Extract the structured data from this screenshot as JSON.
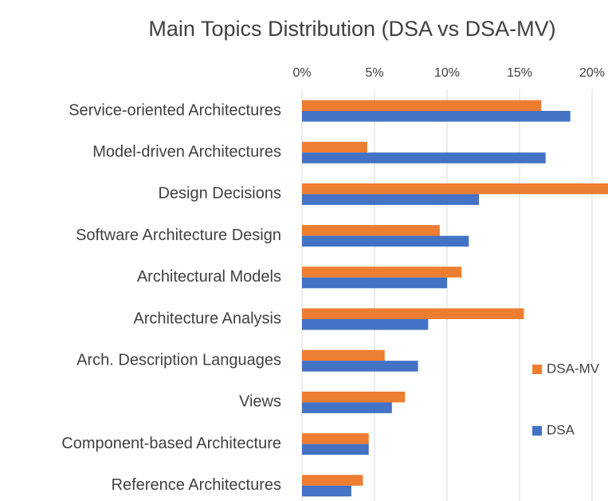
{
  "chart_data": {
    "type": "bar",
    "orientation": "horizontal",
    "title": "Main Topics Distribution (DSA vs DSA-MV)",
    "categories": [
      "Service-oriented Architectures",
      "Model-driven Architectures",
      "Design Decisions",
      "Software Architecture Design",
      "Architectural Models",
      "Architecture Analysis",
      "Arch. Description Languages",
      "Views",
      "Component-based Architecture",
      "Reference Architectures"
    ],
    "series": [
      {
        "name": "DSA-MV",
        "color": "#ed7d31",
        "values": [
          16.5,
          4.5,
          21.1,
          9.5,
          11.0,
          15.3,
          5.7,
          7.1,
          4.6,
          4.2
        ]
      },
      {
        "name": "DSA",
        "color": "#4472c4",
        "values": [
          18.5,
          16.8,
          12.2,
          11.5,
          10.0,
          8.7,
          8.0,
          6.2,
          4.6,
          3.4
        ]
      }
    ],
    "xlim": [
      0,
      21.1
    ],
    "xticks": [
      {
        "value": 0,
        "label": "0%"
      },
      {
        "value": 5,
        "label": "5%"
      },
      {
        "value": 10,
        "label": "10%"
      },
      {
        "value": 15,
        "label": "15%"
      },
      {
        "value": 20,
        "label": "20%"
      }
    ],
    "grid": true,
    "legend": "right"
  }
}
